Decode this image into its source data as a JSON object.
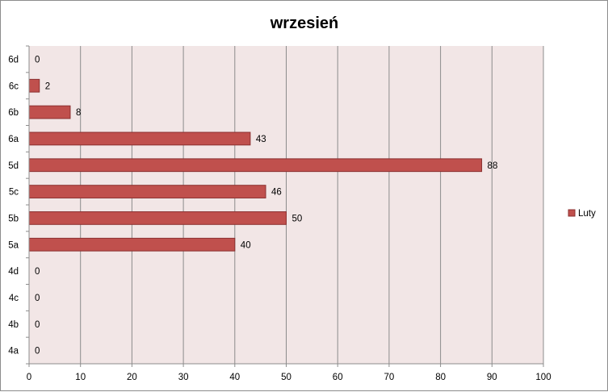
{
  "chart_data": {
    "type": "bar",
    "orientation": "horizontal",
    "title": "wrzesień",
    "categories": [
      "4a",
      "4b",
      "4c",
      "4d",
      "5a",
      "5b",
      "5c",
      "5d",
      "6a",
      "6b",
      "6c",
      "6d"
    ],
    "series": [
      {
        "name": "Luty",
        "values": [
          0,
          0,
          0,
          0,
          40,
          50,
          46,
          88,
          43,
          8,
          2,
          0
        ],
        "color": "#c0504d"
      }
    ],
    "xlim": [
      0,
      100
    ],
    "xticks": [
      "0",
      "10",
      "20",
      "30",
      "40",
      "50",
      "60",
      "70",
      "80",
      "90",
      "100"
    ],
    "xlabel": "",
    "ylabel": "",
    "grid": true,
    "legend_position": "right",
    "data_labels": true,
    "plot_background": "#f2e6e6",
    "bar_border": "#8b3030"
  }
}
